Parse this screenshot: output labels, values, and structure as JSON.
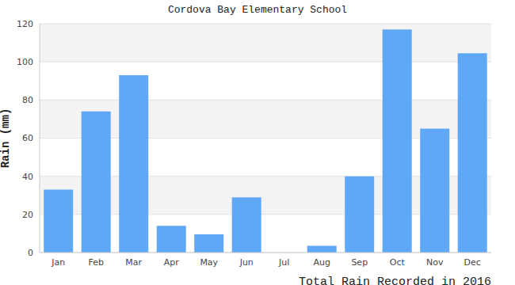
{
  "chart_data": {
    "type": "bar",
    "title": "Cordova Bay Elementary School",
    "xlabel": "Total Rain Recorded in 2016",
    "ylabel": "Rain (mm)",
    "categories": [
      "Jan",
      "Feb",
      "Mar",
      "Apr",
      "May",
      "Jun",
      "Jul",
      "Aug",
      "Sep",
      "Oct",
      "Nov",
      "Dec"
    ],
    "values": [
      33,
      74,
      93,
      14,
      9.5,
      29,
      0,
      3.5,
      40,
      117,
      65,
      104.5
    ],
    "color": "#5fa8f6",
    "ylim": [
      0,
      120
    ],
    "yticks": [
      0,
      20,
      40,
      60,
      80,
      100,
      120
    ],
    "grid": true
  }
}
